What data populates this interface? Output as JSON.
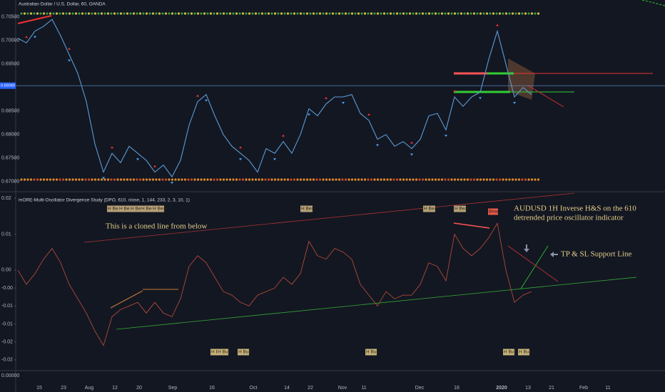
{
  "header": {
    "title": "Australian Dollar / U.S. Dollar, 60, OANDA"
  },
  "chart_data": [
    {
      "type": "line",
      "color": "#5b9bd5",
      "ylim": [
        0.6695,
        0.7065
      ],
      "yticks": [
        {
          "value": 0.705,
          "label": "0.70500"
        },
        {
          "value": 0.7,
          "label": "0.70000"
        },
        {
          "value": 0.695,
          "label": "0.69500"
        },
        {
          "value": 0.685,
          "label": "0.68500"
        },
        {
          "value": 0.68,
          "label": "0.68000"
        },
        {
          "value": 0.675,
          "label": "0.67500"
        },
        {
          "value": 0.67,
          "label": "0.67000"
        }
      ],
      "last_price": {
        "value": 0.6904,
        "label": "0.69040"
      },
      "values": [
        0.7005,
        0.6995,
        0.702,
        0.703,
        0.7045,
        0.701,
        0.697,
        0.693,
        0.687,
        0.678,
        0.672,
        0.676,
        0.674,
        0.6775,
        0.676,
        0.6745,
        0.672,
        0.6735,
        0.671,
        0.6745,
        0.682,
        0.687,
        0.6885,
        0.684,
        0.68,
        0.6775,
        0.676,
        0.6745,
        0.672,
        0.677,
        0.676,
        0.6785,
        0.676,
        0.68,
        0.6855,
        0.684,
        0.6865,
        0.688,
        0.688,
        0.6885,
        0.6845,
        0.683,
        0.679,
        0.68,
        0.6775,
        0.6785,
        0.677,
        0.679,
        0.684,
        0.6845,
        0.681,
        0.688,
        0.686,
        0.688,
        0.689,
        0.696,
        0.702,
        0.695,
        0.688,
        0.69,
        0.6885
      ]
    },
    {
      "type": "line",
      "color": "#c0503a",
      "title": "mORE-Multi-Oscillator Divergence Study (DPO, 610, close, 1, 144, 233, 2, 3, 10, 1)",
      "ylim": [
        -0.028,
        0.0212
      ],
      "yticks": [
        0.02,
        0.01,
        {
          "value": 0,
          "label": "0.00"
        },
        {
          "value": -0.005,
          "label": "-0.00"
        },
        -0.01,
        {
          "value": -0.015,
          "label": "-0.01"
        },
        -0.02,
        {
          "value": -0.025,
          "label": "-0.02"
        }
      ],
      "scale_label": "0.00000",
      "values": [
        0.0,
        -0.004,
        -0.001,
        0.003,
        0.006,
        0.002,
        -0.004,
        -0.008,
        -0.012,
        -0.017,
        -0.021,
        -0.013,
        -0.011,
        -0.01,
        -0.009,
        -0.012,
        -0.009,
        -0.012,
        -0.013,
        -0.008,
        0.001,
        0.004,
        0.002,
        -0.002,
        -0.006,
        -0.007,
        -0.009,
        -0.01,
        -0.007,
        -0.006,
        -0.005,
        -0.002,
        -0.004,
        -0.001,
        0.008,
        0.004,
        0.003,
        0.006,
        0.005,
        0.003,
        -0.004,
        -0.007,
        -0.01,
        -0.006,
        -0.008,
        -0.007,
        -0.007,
        -0.004,
        0.002,
        0.001,
        -0.003,
        0.01,
        0.006,
        0.004,
        0.006,
        0.009,
        0.013,
        0.0,
        -0.009,
        -0.007,
        -0.006
      ],
      "annotations": [
        "This is a cloned line from below",
        "AUDUSD 1H Inverse H&S on the 610",
        "detrended price oscillator indicator",
        "TP & SL Support Line"
      ],
      "bear_labels": [
        "H Bear",
        "H Bear",
        "H Bear",
        "H Bear",
        "H Bear",
        "H Bear",
        "H Bear",
        "H Bear",
        "Bear"
      ],
      "bull_labels": [
        "H Bull",
        "H Bull",
        "H Bull",
        "H Bull",
        "H Bull",
        "H Bull"
      ]
    }
  ],
  "x_axis": {
    "labels": [
      "15",
      "23",
      "Aug",
      "12",
      "20",
      "Sep",
      "16",
      "Oct",
      "14",
      "22",
      "Nov",
      "11",
      "Dec",
      "16",
      "2020",
      "13",
      "21",
      "Feb",
      "11"
    ]
  }
}
